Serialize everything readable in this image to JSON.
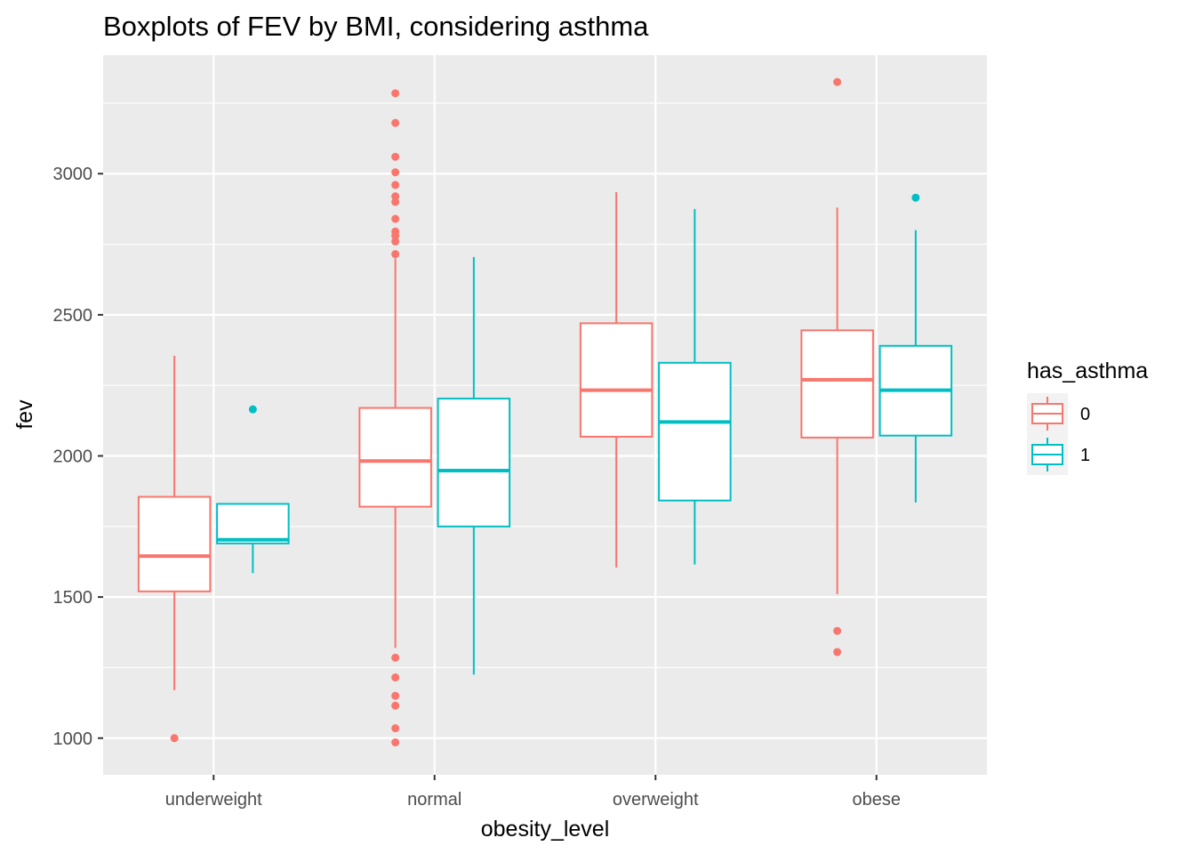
{
  "chart_data": {
    "type": "boxplot",
    "title": "Boxplots of FEV by BMI, considering asthma",
    "xlabel": "obesity_level",
    "ylabel": "fev",
    "categories": [
      "underweight",
      "normal",
      "overweight",
      "obese"
    ],
    "ylim": [
      870,
      3420
    ],
    "yticks": [
      1000,
      1500,
      2000,
      2500,
      3000
    ],
    "ytick_labels": [
      "1000",
      "1500",
      "2000",
      "2500",
      "3000"
    ],
    "grid": true,
    "legend": {
      "title": "has_asthma",
      "position": "right",
      "entries": [
        {
          "label": "0",
          "color": "#F8766D"
        },
        {
          "label": "1",
          "color": "#00BFC4"
        }
      ]
    },
    "series": [
      {
        "color": "#F8766D",
        "boxes": [
          {
            "category": "underweight",
            "lower_whisker": 1170,
            "q1": 1520,
            "median": 1645,
            "q3": 1855,
            "upper_whisker": 2355,
            "outliers": [
              1000
            ]
          },
          {
            "category": "normal",
            "lower_whisker": 1320,
            "q1": 1820,
            "median": 1982,
            "q3": 2170,
            "upper_whisker": 2700,
            "outliers": [
              3285,
              3180,
              3060,
              3005,
              2960,
              2920,
              2900,
              2840,
              2795,
              2780,
              2760,
              2715,
              1285,
              1215,
              1150,
              1115,
              1035,
              985
            ]
          },
          {
            "category": "overweight",
            "lower_whisker": 1605,
            "q1": 2068,
            "median": 2233,
            "q3": 2470,
            "upper_whisker": 2935,
            "outliers": []
          },
          {
            "category": "obese",
            "lower_whisker": 1510,
            "q1": 2065,
            "median": 2270,
            "q3": 2445,
            "upper_whisker": 2880,
            "outliers": [
              3325,
              1380,
              1305
            ]
          }
        ]
      },
      {
        "color": "#00BFC4",
        "boxes": [
          {
            "category": "underweight",
            "lower_whisker": 1585,
            "q1": 1690,
            "median": 1703,
            "q3": 1830,
            "upper_whisker": 1830,
            "outliers": [
              2165
            ]
          },
          {
            "category": "normal",
            "lower_whisker": 1225,
            "q1": 1750,
            "median": 1948,
            "q3": 2203,
            "upper_whisker": 2705,
            "outliers": []
          },
          {
            "category": "overweight",
            "lower_whisker": 1615,
            "q1": 1842,
            "median": 2120,
            "q3": 2330,
            "upper_whisker": 2875,
            "outliers": []
          },
          {
            "category": "obese",
            "lower_whisker": 1835,
            "q1": 2072,
            "median": 2233,
            "q3": 2390,
            "upper_whisker": 2800,
            "outliers": [
              2915
            ]
          }
        ]
      }
    ]
  }
}
